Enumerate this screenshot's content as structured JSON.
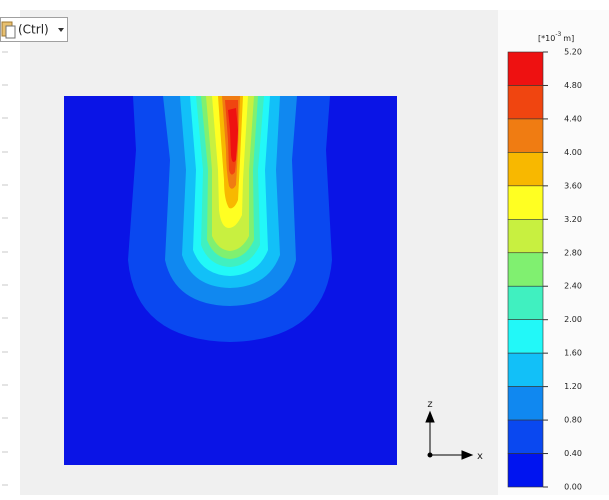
{
  "paste_button": {
    "label": "(Ctrl)"
  },
  "legend": {
    "unit_prefix": "[*10",
    "unit_exp": "-3",
    "unit_suffix": "m]",
    "levels": [
      "5.20",
      "4.80",
      "4.40",
      "4.00",
      "3.60",
      "3.20",
      "2.80",
      "2.40",
      "2.00",
      "1.60",
      "1.20",
      "0.80",
      "0.40",
      "0.00"
    ],
    "colors": [
      "#ee1111",
      "#f04510",
      "#f07c12",
      "#f8b800",
      "#ffff22",
      "#c8f040",
      "#80f070",
      "#40f0c0",
      "#22f8f8",
      "#12c0f8",
      "#1088f0",
      "#0a48f0",
      "#0014f0"
    ]
  },
  "axes": {
    "vertical": "z",
    "horizontal": "x"
  }
}
